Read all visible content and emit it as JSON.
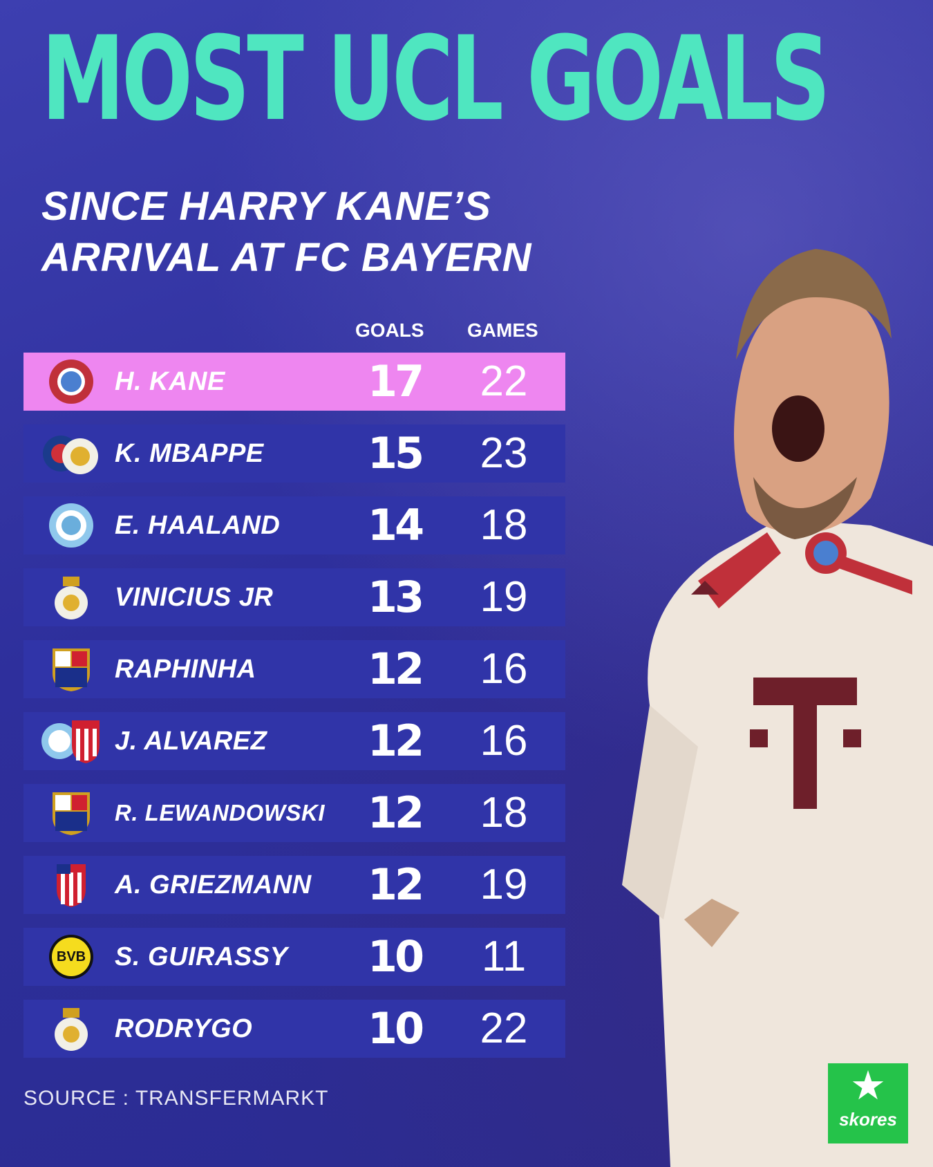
{
  "header": {
    "title": "MOST UCL GOALS",
    "subtitle_line1": "SINCE HARRY KANE’S",
    "subtitle_line2": "ARRIVAL AT FC BAYERN"
  },
  "columns": {
    "goals": "GOALS",
    "games": "GAMES"
  },
  "rows": [
    {
      "player": "H. KANE",
      "goals": "17",
      "games": "22",
      "badge": "bayern-badge-icon"
    },
    {
      "player": "K. MBAPPE",
      "goals": "15",
      "games": "23",
      "badge": "psg-real-madrid-badge-icon"
    },
    {
      "player": "E. HAALAND",
      "goals": "14",
      "games": "18",
      "badge": "man-city-badge-icon"
    },
    {
      "player": "VINICIUS JR",
      "goals": "13",
      "games": "19",
      "badge": "real-madrid-badge-icon"
    },
    {
      "player": "RAPHINHA",
      "goals": "12",
      "games": "16",
      "badge": "barcelona-badge-icon"
    },
    {
      "player": "J. ALVAREZ",
      "goals": "12",
      "games": "16",
      "badge": "man-city-atletico-badge-icon"
    },
    {
      "player": "R. LEWANDOWSKI",
      "goals": "12",
      "games": "18",
      "badge": "barcelona-badge-icon"
    },
    {
      "player": "A. GRIEZMANN",
      "goals": "12",
      "games": "19",
      "badge": "atletico-badge-icon"
    },
    {
      "player": "S. GUIRASSY",
      "goals": "10",
      "games": "11",
      "badge": "dortmund-badge-icon"
    },
    {
      "player": "RODRYGO",
      "goals": "10",
      "games": "22",
      "badge": "real-madrid-badge-icon"
    }
  ],
  "source": "SOURCE : TRANSFERMARKT",
  "brand": {
    "name": "skores",
    "star": "★"
  },
  "colors": {
    "background": "#2e2f9c",
    "title": "#4fe6c0",
    "row": "#3034a8",
    "highlight_row": "#ee86f0",
    "brand_green": "#25c34a"
  }
}
